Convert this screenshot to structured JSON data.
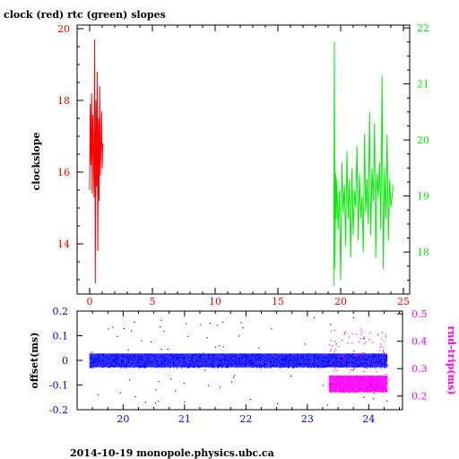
{
  "chart_data": [
    {
      "type": "line",
      "title": "clock (red) rtc (green) slopes",
      "xlabel": "",
      "ylabel": "clockslope",
      "x_ticks": [
        "0",
        "5",
        "10",
        "15",
        "20",
        "25"
      ],
      "xlim": [
        -1,
        25.5
      ],
      "y_left_ticks": [
        "14",
        "16",
        "18",
        "20"
      ],
      "y_left_lim": [
        12.6,
        20.1
      ],
      "y_right_ticks": [
        "18",
        "19",
        "20",
        "21",
        "22"
      ],
      "y_right_lim": [
        17.25,
        22.05
      ],
      "colors": {
        "clock": "#ff0000",
        "rtc": "#00ee00",
        "axes": "#000000"
      },
      "series": [
        {
          "name": "clock",
          "axis": "left",
          "color": "#ff0000",
          "x": [
            0.0,
            0.05,
            0.1,
            0.15,
            0.2,
            0.25,
            0.3,
            0.35,
            0.4,
            0.45,
            0.5,
            0.55,
            0.6,
            0.65,
            0.7,
            0.75,
            0.8,
            0.85,
            0.9,
            0.95,
            1.0,
            1.05
          ],
          "values": [
            15.5,
            17.9,
            16.2,
            18.2,
            15.4,
            17.6,
            16.6,
            15.3,
            19.7,
            12.9,
            18.0,
            15.6,
            18.8,
            13.8,
            17.5,
            15.2,
            18.4,
            15.9,
            16.7,
            17.7,
            16.1,
            16.8
          ]
        },
        {
          "name": "rtc",
          "axis": "right",
          "color": "#00ee00",
          "x": [
            19.45,
            19.5,
            19.55,
            19.6,
            19.65,
            19.7,
            19.8,
            19.9,
            20.0,
            20.1,
            20.2,
            20.3,
            20.4,
            20.5,
            20.6,
            20.7,
            20.8,
            20.9,
            21.0,
            21.1,
            21.2,
            21.3,
            21.4,
            21.5,
            21.6,
            21.7,
            21.8,
            21.9,
            22.0,
            22.1,
            22.2,
            22.3,
            22.4,
            22.5,
            22.6,
            22.7,
            22.8,
            22.9,
            23.0,
            23.1,
            23.2,
            23.3,
            23.4,
            23.5,
            23.6,
            23.7,
            23.8,
            23.9,
            24.0,
            24.1,
            24.2
          ],
          "values": [
            17.4,
            21.75,
            17.7,
            19.4,
            18.6,
            19.3,
            18.4,
            19.1,
            17.5,
            19.6,
            18.7,
            19.2,
            18.1,
            19.8,
            18.6,
            19.3,
            17.9,
            19.5,
            18.3,
            19.1,
            18.8,
            19.9,
            18.2,
            19.4,
            18.6,
            19.0,
            18.0,
            20.1,
            18.7,
            19.3,
            18.5,
            20.5,
            18.3,
            19.5,
            18.9,
            20.3,
            17.9,
            19.4,
            19.0,
            19.6,
            18.4,
            21.15,
            17.7,
            19.5,
            18.6,
            20.1,
            18.2,
            19.3,
            18.8,
            19.0,
            19.2
          ]
        }
      ]
    },
    {
      "type": "scatter",
      "xlabel": "",
      "ylabel": "offset(ms)",
      "ylabel_right": "rnd-trip(ms)",
      "x_ticks": [
        "20",
        "21",
        "22",
        "23",
        "24"
      ],
      "xlim": [
        19.25,
        24.55
      ],
      "y_left_ticks": [
        "-0.2",
        "-0.1",
        "0",
        "0.1",
        "0.2"
      ],
      "y_left_lim": [
        -0.2,
        0.2
      ],
      "y_right_ticks": [
        "0.2",
        "0.3",
        "0.4",
        "0.5"
      ],
      "y_right_lim": [
        0.15,
        0.51
      ],
      "colors": {
        "offset": "#0000ff",
        "rnd_trip": "#ff00ff",
        "axes": "#000000"
      },
      "series": [
        {
          "name": "offset",
          "axis": "left",
          "color": "#0000ff",
          "x_range": [
            19.45,
            24.3
          ],
          "center": 0.0,
          "band": 0.028
        },
        {
          "name": "rnd-trip",
          "axis": "right",
          "color": "#ff00ff",
          "x_range": [
            23.35,
            24.3
          ],
          "center": 0.245,
          "band": 0.03
        }
      ]
    }
  ],
  "footer": "2014-10-19 monopole.physics.ubc.ca"
}
